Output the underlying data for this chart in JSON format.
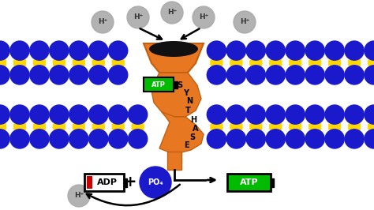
{
  "bg_color": "#ffffff",
  "blue_sphere_color": "#1a1acc",
  "membrane_lipid_color": "#FFD700",
  "synthase_color": "#E87722",
  "h_ion_color": "#aaaaaa",
  "h_ion_text_color": "#333333",
  "adp_red_bar_color": "#cc0000",
  "atp_box_color": "#00aa00",
  "po4_color": "#1a1acc",
  "synthase_label": "SYNTHASE",
  "atp_label_synthase": "ATP",
  "adp_label": "ADP",
  "atp_label": "ATP",
  "po4_label": "PO₄",
  "h_plus": "H⁺",
  "plus_sign": "+",
  "fig_width": 4.74,
  "fig_height": 2.66,
  "dpi": 100
}
